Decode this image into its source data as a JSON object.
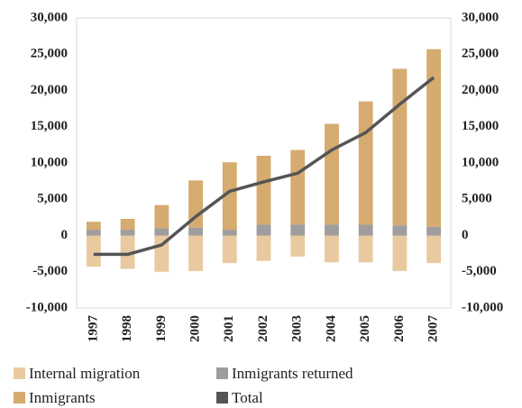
{
  "chart_data": {
    "type": "bar-line",
    "categories": [
      "1997",
      "1998",
      "1999",
      "2000",
      "2001",
      "2002",
      "2003",
      "2004",
      "2005",
      "2006",
      "2007"
    ],
    "series": [
      {
        "name": "Internal migration",
        "type": "bar",
        "color": "#e9c9a0",
        "values": [
          -4300,
          -4600,
          -5000,
          -4900,
          -3800,
          -3500,
          -2900,
          -3700,
          -3700,
          -4900,
          -3800
        ]
      },
      {
        "name": "Inmigrants returned",
        "type": "bar",
        "color": "#9f9d9d",
        "values": [
          800,
          800,
          1000,
          1100,
          800,
          1500,
          1500,
          1500,
          1500,
          1400,
          1200
        ]
      },
      {
        "name": "Inmigrants",
        "type": "bar",
        "color": "#d5ab6f",
        "values": [
          1100,
          1500,
          3200,
          6500,
          9300,
          9500,
          10300,
          13900,
          17000,
          21600,
          24500
        ]
      },
      {
        "name": "Total",
        "type": "line",
        "color": "#555557",
        "values": [
          -2600,
          -2600,
          -1300,
          2600,
          6100,
          7400,
          8600,
          11800,
          14200,
          18100,
          21800
        ]
      }
    ],
    "ylim": [
      -10000,
      30000
    ],
    "yticks": [
      {
        "value": -10000,
        "label": "-10,000"
      },
      {
        "value": -5000,
        "label": "-5,000"
      },
      0,
      {
        "value": 5000,
        "label": "5,000"
      },
      {
        "value": 10000,
        "label": "10,000"
      },
      {
        "value": 15000,
        "label": "15,000"
      },
      {
        "value": 20000,
        "label": "20,000"
      },
      {
        "value": 25000,
        "label": "25,000"
      },
      {
        "value": 30000,
        "label": "30,000"
      }
    ],
    "y2lim": [
      -10000,
      30000
    ],
    "y2ticks": [
      {
        "value": -10000,
        "label": "-10,000"
      },
      {
        "value": -5000,
        "label": "-5,000"
      },
      0,
      {
        "value": 5000,
        "label": "5,000"
      },
      {
        "value": 10000,
        "label": "10,000"
      },
      {
        "value": 15000,
        "label": "15,000"
      },
      {
        "value": 20000,
        "label": "20,000"
      },
      {
        "value": 25000,
        "label": "25,000"
      },
      {
        "value": 30000,
        "label": "30,000"
      }
    ]
  }
}
